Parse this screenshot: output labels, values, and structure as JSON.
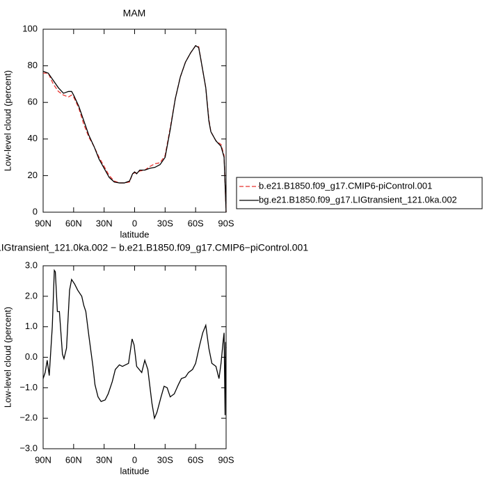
{
  "chart_data": [
    {
      "type": "line",
      "title": "MAM",
      "x_label": "latitude",
      "y_label": "Low-level cloud (percent)",
      "x": [
        90,
        85,
        80,
        75,
        70,
        65,
        62,
        60,
        55,
        50,
        45,
        40,
        35,
        30,
        25,
        20,
        15,
        10,
        5,
        2,
        0,
        -2,
        -5,
        -10,
        -15,
        -20,
        -25,
        -30,
        -35,
        -40,
        -45,
        -50,
        -55,
        -60,
        -63,
        -65,
        -70,
        -73,
        -75,
        -80,
        -85,
        -88,
        -90
      ],
      "series": [
        {
          "name": "b.e21.B1850.f09_g17.CMIP6-piControl.001",
          "color": "#e8332f",
          "dash": true,
          "values": [
            76,
            76,
            70,
            66,
            64,
            63,
            64,
            63,
            57,
            48,
            41,
            36,
            30,
            25,
            20,
            17,
            16,
            16,
            16.5,
            21,
            21.5,
            21.5,
            22.5,
            23,
            25,
            26.5,
            27,
            31,
            46,
            62,
            74,
            82,
            87,
            91,
            90.5,
            84,
            68,
            51,
            44,
            39,
            37,
            31,
            0
          ]
        },
        {
          "name": "bg.e21.B1850.f09_g17.LIGtransient_121.0ka.002",
          "color": "#000000",
          "dash": false,
          "values": [
            77,
            76,
            72,
            68,
            65,
            66,
            66,
            64,
            58,
            50,
            42,
            36,
            29,
            24,
            19,
            16.5,
            16,
            16,
            17,
            21,
            22,
            21,
            23,
            23,
            24,
            24.5,
            26,
            30,
            45,
            62,
            74,
            82,
            87,
            91,
            90,
            84,
            68,
            50,
            44,
            39,
            36,
            30,
            0
          ]
        }
      ],
      "xlim": [
        90,
        -90
      ],
      "xticks": [
        {
          "value": 90,
          "label": "90N"
        },
        {
          "value": 60,
          "label": "60N"
        },
        {
          "value": 30,
          "label": "30N"
        },
        0,
        {
          "value": -30,
          "label": "30S"
        },
        {
          "value": -60,
          "label": "60S"
        },
        {
          "value": -90,
          "label": "90S"
        }
      ],
      "ylim": [
        0,
        100
      ],
      "yticks": [
        0,
        20,
        40,
        60,
        80,
        100
      ],
      "legend": "right"
    },
    {
      "type": "line",
      "title": "LIGtransient_121.0ka.002 − b.e21.B1850.f09_g17.CMIP6−piControl.001",
      "x_label": "latitude",
      "y_label": "Low-level cloud (percent)",
      "x": [
        90,
        88,
        86,
        84,
        81,
        79,
        78,
        76,
        74,
        71,
        69.5,
        67,
        64,
        62,
        59,
        56,
        52,
        50,
        48,
        45,
        41,
        39,
        36,
        33,
        29,
        26,
        22,
        19,
        15,
        12,
        9,
        6,
        2.5,
        0.5,
        -2,
        -7,
        -10,
        -13,
        -17,
        -19.5,
        -22,
        -26,
        -29,
        -32,
        -35,
        -39,
        -43,
        -46,
        -50,
        -53,
        -57,
        -60,
        -64,
        -67,
        -70,
        -73,
        -76,
        -80,
        -83,
        -85,
        -87,
        -88,
        -89,
        -89.5,
        -90
      ],
      "color": "#000000",
      "values": [
        -0.7,
        -0.5,
        -0.1,
        -0.6,
        1.0,
        2.85,
        2.8,
        1.5,
        1.5,
        0.1,
        -0.05,
        0.3,
        2.2,
        2.55,
        2.4,
        2.2,
        2.0,
        1.7,
        1.5,
        0.7,
        -0.3,
        -0.9,
        -1.3,
        -1.45,
        -1.4,
        -1.2,
        -0.8,
        -0.4,
        -0.25,
        -0.3,
        -0.25,
        -0.2,
        0.6,
        0.4,
        -0.3,
        -0.5,
        -0.1,
        -0.4,
        -1.5,
        -2.0,
        -1.8,
        -1.3,
        -0.95,
        -1.0,
        -1.3,
        -1.2,
        -0.9,
        -0.7,
        -0.65,
        -0.5,
        -0.4,
        -0.2,
        0.4,
        0.8,
        1.05,
        0.3,
        -0.2,
        -0.3,
        -0.7,
        -0.2,
        0.5,
        0.8,
        -1.9,
        0.5,
        0.3
      ],
      "xlim": [
        90,
        -90
      ],
      "xticks": [
        {
          "value": 90,
          "label": "90N"
        },
        {
          "value": 60,
          "label": "60N"
        },
        {
          "value": 30,
          "label": "30N"
        },
        0,
        {
          "value": -30,
          "label": "30S"
        },
        {
          "value": -60,
          "label": "60S"
        },
        {
          "value": -90,
          "label": "90S"
        }
      ],
      "ylim": [
        -3,
        3
      ],
      "yticks": [
        {
          "value": -3,
          "label": "−3.0"
        },
        {
          "value": -2,
          "label": "−2.0"
        },
        {
          "value": -1,
          "label": "−1.0"
        },
        {
          "value": 0,
          "label": "0.0"
        },
        {
          "value": 1,
          "label": "1.0"
        },
        {
          "value": 2,
          "label": "2.0"
        },
        {
          "value": 3,
          "label": "3.0"
        }
      ]
    }
  ]
}
